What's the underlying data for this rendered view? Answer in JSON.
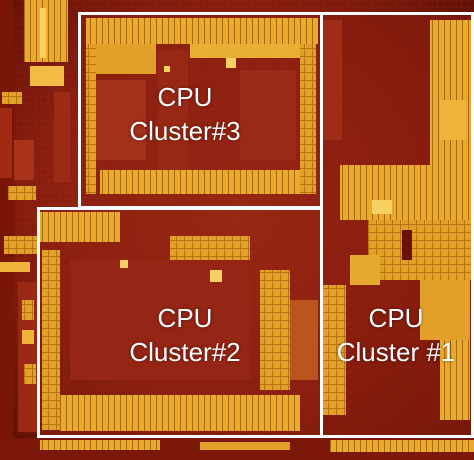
{
  "clusters": [
    {
      "line1": "CPU",
      "line2": "Cluster#3"
    },
    {
      "line1": "CPU",
      "line2": "Cluster#2"
    },
    {
      "line1": "CPU",
      "line2": "Cluster #1"
    }
  ],
  "colors": {
    "die_base": "#8a1c0e",
    "die_dark": "#6a1208",
    "gold": "#e8a21c",
    "gold_light": "#f6c84a",
    "outline": "#ffffff"
  }
}
